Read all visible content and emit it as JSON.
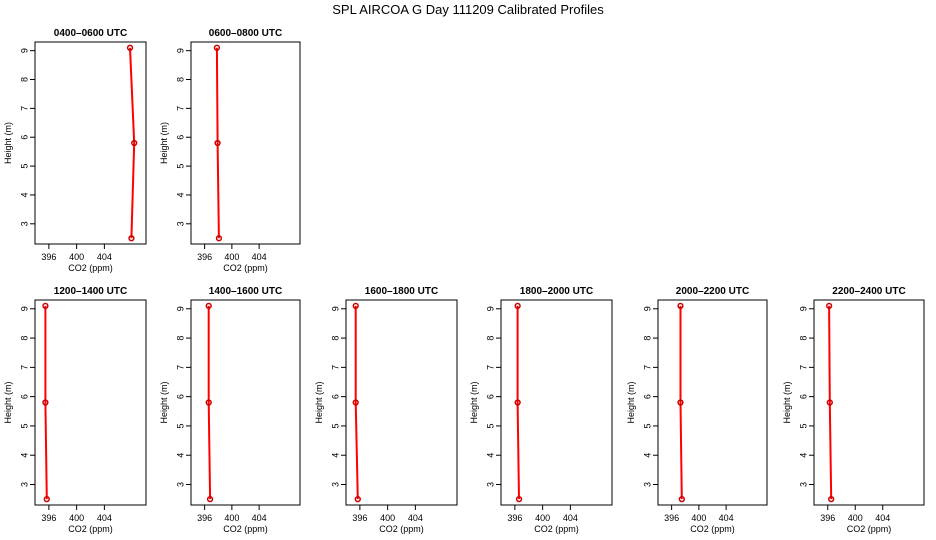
{
  "title": "SPL AIRCOA G  Day 111209  Calibrated Profiles",
  "chart_data": [
    {
      "type": "line",
      "title": "0400–0600 UTC",
      "xlabel": "CO2 (ppm)",
      "ylabel": "Height (m)",
      "xlim": [
        394,
        410
      ],
      "ylim": [
        2.3,
        9.3
      ],
      "xticks": [
        396,
        400,
        404
      ],
      "yticks": [
        3,
        4,
        5,
        6,
        7,
        8,
        9
      ],
      "series": [
        {
          "x": [
            407.7,
            408.3,
            407.9
          ],
          "y": [
            9.1,
            5.8,
            2.5
          ]
        }
      ]
    },
    {
      "type": "line",
      "title": "0600–0800 UTC",
      "xlabel": "CO2 (ppm)",
      "ylabel": "Height (m)",
      "xlim": [
        394,
        410
      ],
      "ylim": [
        2.3,
        9.3
      ],
      "xticks": [
        396,
        400,
        404
      ],
      "yticks": [
        3,
        4,
        5,
        6,
        7,
        8,
        9
      ],
      "series": [
        {
          "x": [
            397.8,
            397.9,
            398.1
          ],
          "y": [
            9.1,
            5.8,
            2.5
          ]
        }
      ]
    },
    {
      "type": "line",
      "title": "1200–1400 UTC",
      "xlabel": "CO2 (ppm)",
      "ylabel": "Height (m)",
      "xlim": [
        394,
        410
      ],
      "ylim": [
        2.3,
        9.3
      ],
      "xticks": [
        396,
        400,
        404
      ],
      "yticks": [
        3,
        4,
        5,
        6,
        7,
        8,
        9
      ],
      "series": [
        {
          "x": [
            395.5,
            395.5,
            395.7
          ],
          "y": [
            9.1,
            5.8,
            2.5
          ]
        }
      ]
    },
    {
      "type": "line",
      "title": "1400–1600 UTC",
      "xlabel": "CO2 (ppm)",
      "ylabel": "Height (m)",
      "xlim": [
        394,
        410
      ],
      "ylim": [
        2.3,
        9.3
      ],
      "xticks": [
        396,
        400,
        404
      ],
      "yticks": [
        3,
        4,
        5,
        6,
        7,
        8,
        9
      ],
      "series": [
        {
          "x": [
            396.6,
            396.6,
            396.8
          ],
          "y": [
            9.1,
            5.8,
            2.5
          ]
        }
      ]
    },
    {
      "type": "line",
      "title": "1600–1800 UTC",
      "xlabel": "CO2 (ppm)",
      "ylabel": "Height (m)",
      "xlim": [
        394,
        410
      ],
      "ylim": [
        2.3,
        9.3
      ],
      "xticks": [
        396,
        400,
        404
      ],
      "yticks": [
        3,
        4,
        5,
        6,
        7,
        8,
        9
      ],
      "series": [
        {
          "x": [
            395.4,
            395.4,
            395.7
          ],
          "y": [
            9.1,
            5.8,
            2.5
          ]
        }
      ]
    },
    {
      "type": "line",
      "title": "1800–2000 UTC",
      "xlabel": "CO2 (ppm)",
      "ylabel": "Height (m)",
      "xlim": [
        394,
        410
      ],
      "ylim": [
        2.3,
        9.3
      ],
      "xticks": [
        396,
        400,
        404
      ],
      "yticks": [
        3,
        4,
        5,
        6,
        7,
        8,
        9
      ],
      "series": [
        {
          "x": [
            396.4,
            396.4,
            396.6
          ],
          "y": [
            9.1,
            5.8,
            2.5
          ]
        }
      ]
    },
    {
      "type": "line",
      "title": "2000–2200 UTC",
      "xlabel": "CO2 (ppm)",
      "ylabel": "Height (m)",
      "xlim": [
        394,
        410
      ],
      "ylim": [
        2.3,
        9.3
      ],
      "xticks": [
        396,
        400,
        404
      ],
      "yticks": [
        3,
        4,
        5,
        6,
        7,
        8,
        9
      ],
      "series": [
        {
          "x": [
            397.3,
            397.3,
            397.5
          ],
          "y": [
            9.1,
            5.8,
            2.5
          ]
        }
      ]
    },
    {
      "type": "line",
      "title": "2200–2400 UTC",
      "xlabel": "CO2 (ppm)",
      "ylabel": "Height (m)",
      "xlim": [
        394,
        410
      ],
      "ylim": [
        2.3,
        9.3
      ],
      "xticks": [
        396,
        400,
        404
      ],
      "yticks": [
        3,
        4,
        5,
        6,
        7,
        8,
        9
      ],
      "series": [
        {
          "x": [
            396.2,
            396.3,
            396.5
          ],
          "y": [
            9.1,
            5.8,
            2.5
          ]
        }
      ]
    }
  ],
  "colors": {
    "line": "#ff0000",
    "marker_edge": "#cc0000",
    "axis": "#000000"
  }
}
